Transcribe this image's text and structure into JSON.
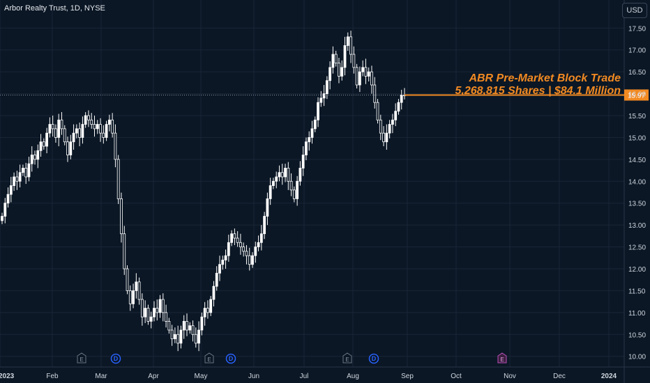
{
  "header": {
    "title": "Arbor Realty Trust, 1D, NYSE",
    "currency_button": "USD"
  },
  "annotation": {
    "line1": "ABR Pre-Market Block Trade",
    "line2": "5,268,815 Shares | $84.1 Million",
    "color": "#f28a22"
  },
  "price_tag": "15.97",
  "colors": {
    "background": "#0b1725",
    "grid": "#1a2636",
    "candle": "#ffffff",
    "text": "#cfd6df",
    "accent": "#f28a22"
  },
  "chart_data": {
    "type": "candlestick",
    "ylim": [
      9.9,
      17.95
    ],
    "y_ticks": [
      "17.50",
      "17.00",
      "16.50",
      "16.00",
      "15.50",
      "15.00",
      "14.50",
      "14.00",
      "13.50",
      "13.00",
      "12.50",
      "12.00",
      "11.50",
      "11.00",
      "10.50",
      "10.00"
    ],
    "x_ticks": [
      "2023",
      "Feb",
      "Mar",
      "Apr",
      "May",
      "Jun",
      "Jul",
      "Aug",
      "Sep",
      "Oct",
      "Nov",
      "Dec",
      "2024"
    ],
    "last_price": 15.97,
    "events": [
      {
        "label": "E",
        "month": "Mar"
      },
      {
        "label": "D",
        "month": "Mar"
      },
      {
        "label": "E",
        "month": "May"
      },
      {
        "label": "D",
        "month": "May"
      },
      {
        "label": "E",
        "month": "Aug"
      },
      {
        "label": "D",
        "month": "Aug"
      },
      {
        "label": "E",
        "month": "Nov"
      }
    ],
    "closes": [
      13.2,
      13.5,
      13.7,
      13.9,
      14.1,
      14.0,
      14.2,
      14.3,
      14.1,
      14.4,
      14.6,
      14.5,
      14.7,
      14.9,
      14.8,
      15.1,
      15.3,
      15.2,
      15.0,
      15.4,
      15.2,
      14.9,
      14.6,
      14.9,
      15.1,
      15.2,
      15.0,
      15.3,
      15.5,
      15.4,
      15.3,
      15.2,
      15.3,
      15.1,
      15.0,
      15.3,
      15.4,
      15.1,
      14.5,
      13.6,
      12.8,
      12.0,
      11.5,
      11.2,
      11.5,
      11.7,
      11.3,
      10.9,
      11.1,
      10.8,
      10.9,
      11.1,
      11.0,
      11.3,
      11.0,
      10.8,
      10.6,
      10.4,
      10.5,
      10.3,
      10.6,
      10.8,
      10.6,
      10.7,
      10.5,
      10.3,
      10.6,
      10.9,
      11.1,
      11.0,
      11.3,
      11.6,
      11.9,
      12.1,
      12.2,
      12.3,
      12.6,
      12.8,
      12.7,
      12.6,
      12.5,
      12.4,
      12.3,
      12.1,
      12.3,
      12.5,
      12.6,
      12.8,
      13.2,
      13.6,
      13.9,
      14.0,
      14.1,
      14.2,
      14.1,
      14.3,
      14.0,
      13.8,
      13.6,
      14.0,
      14.3,
      14.6,
      14.9,
      15.0,
      15.2,
      15.4,
      15.8,
      15.9,
      16.0,
      16.3,
      16.6,
      16.9,
      16.7,
      16.4,
      16.6,
      17.1,
      17.3,
      16.9,
      16.6,
      16.2,
      16.5,
      16.6,
      16.4,
      16.5,
      16.2,
      15.8,
      15.4,
      15.1,
      14.9,
      15.1,
      15.3,
      15.4,
      15.6,
      15.8,
      15.97,
      15.97
    ]
  }
}
